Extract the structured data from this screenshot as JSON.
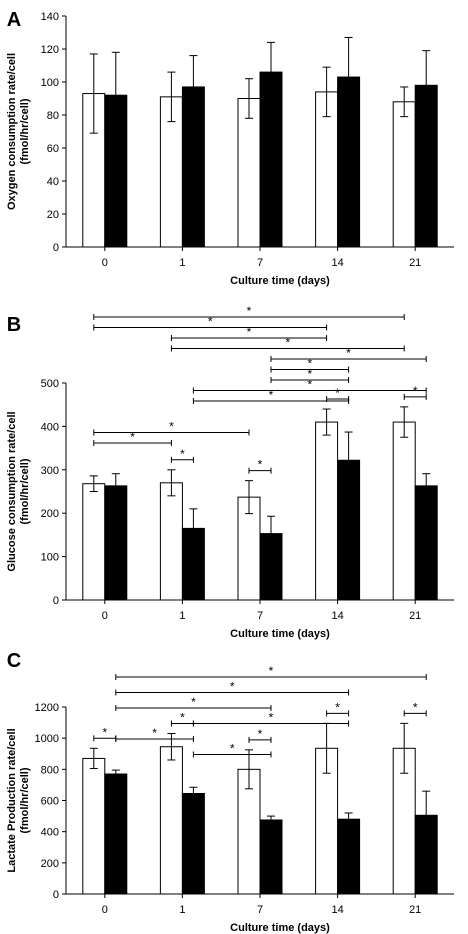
{
  "chart_data": [
    {
      "type": "bar",
      "panel_label": "A",
      "categories": [
        "0",
        "1",
        "7",
        "14",
        "21"
      ],
      "xlabel": "Culture time (days)",
      "ylabel_lines": [
        "Oxygen consumption rate/cell",
        "(fmol/hr/cell)"
      ],
      "ylim": [
        0,
        140
      ],
      "yticks": [
        0,
        20,
        40,
        60,
        80,
        100,
        120,
        140
      ],
      "grid": false,
      "series": [
        {
          "fill": "#ffffff",
          "values": [
            93,
            91,
            90,
            94,
            88
          ],
          "errors": [
            24,
            15,
            12,
            15,
            9
          ]
        },
        {
          "fill": "#000000",
          "values": [
            92,
            97,
            106,
            103,
            98
          ],
          "errors": [
            26,
            19,
            18,
            24,
            21
          ]
        }
      ],
      "significance": []
    },
    {
      "type": "bar",
      "panel_label": "B",
      "categories": [
        "0",
        "1",
        "7",
        "14",
        "21"
      ],
      "xlabel": "Culture time (days)",
      "ylabel_lines": [
        "Glucose consumption rate/cell",
        "(fmol/hr/cell)"
      ],
      "ylim": [
        0,
        500
      ],
      "yticks": [
        0,
        100,
        200,
        300,
        400,
        500
      ],
      "grid": false,
      "series": [
        {
          "fill": "#ffffff",
          "values": [
            268,
            270,
            237,
            410,
            410
          ],
          "errors": [
            18,
            30,
            38,
            30,
            35
          ]
        },
        {
          "fill": "#000000",
          "values": [
            263,
            165,
            153,
            322,
            263
          ],
          "errors": [
            28,
            45,
            40,
            65,
            28
          ]
        }
      ],
      "significance": [
        {
          "from": [
            0,
            0
          ],
          "to": [
            4,
            0
          ],
          "label": "*"
        },
        {
          "from": [
            0,
            0
          ],
          "to": [
            3,
            0
          ],
          "label": "*"
        },
        {
          "from": [
            1,
            0
          ],
          "to": [
            3,
            0
          ],
          "label": "*"
        },
        {
          "from": [
            1,
            0
          ],
          "to": [
            4,
            0
          ],
          "label": "*"
        },
        {
          "from": [
            2,
            1
          ],
          "to": [
            4,
            1
          ],
          "label": "*"
        },
        {
          "from": [
            2,
            1
          ],
          "to": [
            3,
            1
          ],
          "label": "*"
        },
        {
          "from": [
            2,
            1
          ],
          "to": [
            3,
            1
          ],
          "label": "*"
        },
        {
          "from": [
            1,
            1
          ],
          "to": [
            4,
            1
          ],
          "label": "*"
        },
        {
          "from": [
            1,
            1
          ],
          "to": [
            3,
            1
          ],
          "label": "*"
        },
        {
          "from": [
            3,
            0
          ],
          "to": [
            3,
            1
          ],
          "label": "*"
        },
        {
          "from": [
            4,
            0
          ],
          "to": [
            4,
            1
          ],
          "label": "*"
        },
        {
          "from": [
            0,
            0
          ],
          "to": [
            2,
            0
          ],
          "label": "*"
        },
        {
          "from": [
            0,
            0
          ],
          "to": [
            1,
            0
          ],
          "label": "*"
        },
        {
          "from": [
            1,
            0
          ],
          "to": [
            1,
            1
          ],
          "label": "*"
        },
        {
          "from": [
            2,
            0
          ],
          "to": [
            2,
            1
          ],
          "label": "*"
        }
      ]
    },
    {
      "type": "bar",
      "panel_label": "C",
      "categories": [
        "0",
        "1",
        "7",
        "14",
        "21"
      ],
      "xlabel": "Culture time (days)",
      "ylabel_lines": [
        "Lactate Production rate/cell",
        "(fmol/hr/cell)"
      ],
      "ylim": [
        0,
        1200
      ],
      "yticks": [
        0,
        200,
        400,
        600,
        800,
        1000,
        1200
      ],
      "grid": false,
      "series": [
        {
          "fill": "#ffffff",
          "values": [
            870,
            945,
            800,
            935,
            935
          ],
          "errors": [
            65,
            85,
            125,
            160,
            160
          ]
        },
        {
          "fill": "#000000",
          "values": [
            770,
            645,
            475,
            480,
            505
          ],
          "errors": [
            25,
            40,
            25,
            40,
            155
          ]
        }
      ],
      "significance": [
        {
          "from": [
            0,
            1
          ],
          "to": [
            4,
            1
          ],
          "label": "*"
        },
        {
          "from": [
            0,
            1
          ],
          "to": [
            3,
            1
          ],
          "label": "*"
        },
        {
          "from": [
            0,
            1
          ],
          "to": [
            2,
            1
          ],
          "label": "*"
        },
        {
          "from": [
            1,
            1
          ],
          "to": [
            3,
            1
          ],
          "label": "*"
        },
        {
          "from": [
            0,
            1
          ],
          "to": [
            1,
            1
          ],
          "label": "*"
        },
        {
          "from": [
            1,
            1
          ],
          "to": [
            2,
            1
          ],
          "label": "*"
        },
        {
          "from": [
            3,
            0
          ],
          "to": [
            3,
            1
          ],
          "label": "*"
        },
        {
          "from": [
            4,
            0
          ],
          "to": [
            4,
            1
          ],
          "label": "*"
        },
        {
          "from": [
            0,
            0
          ],
          "to": [
            0,
            1
          ],
          "label": "*"
        },
        {
          "from": [
            1,
            0
          ],
          "to": [
            1,
            1
          ],
          "label": "*"
        },
        {
          "from": [
            2,
            0
          ],
          "to": [
            2,
            1
          ],
          "label": "*"
        }
      ]
    }
  ]
}
